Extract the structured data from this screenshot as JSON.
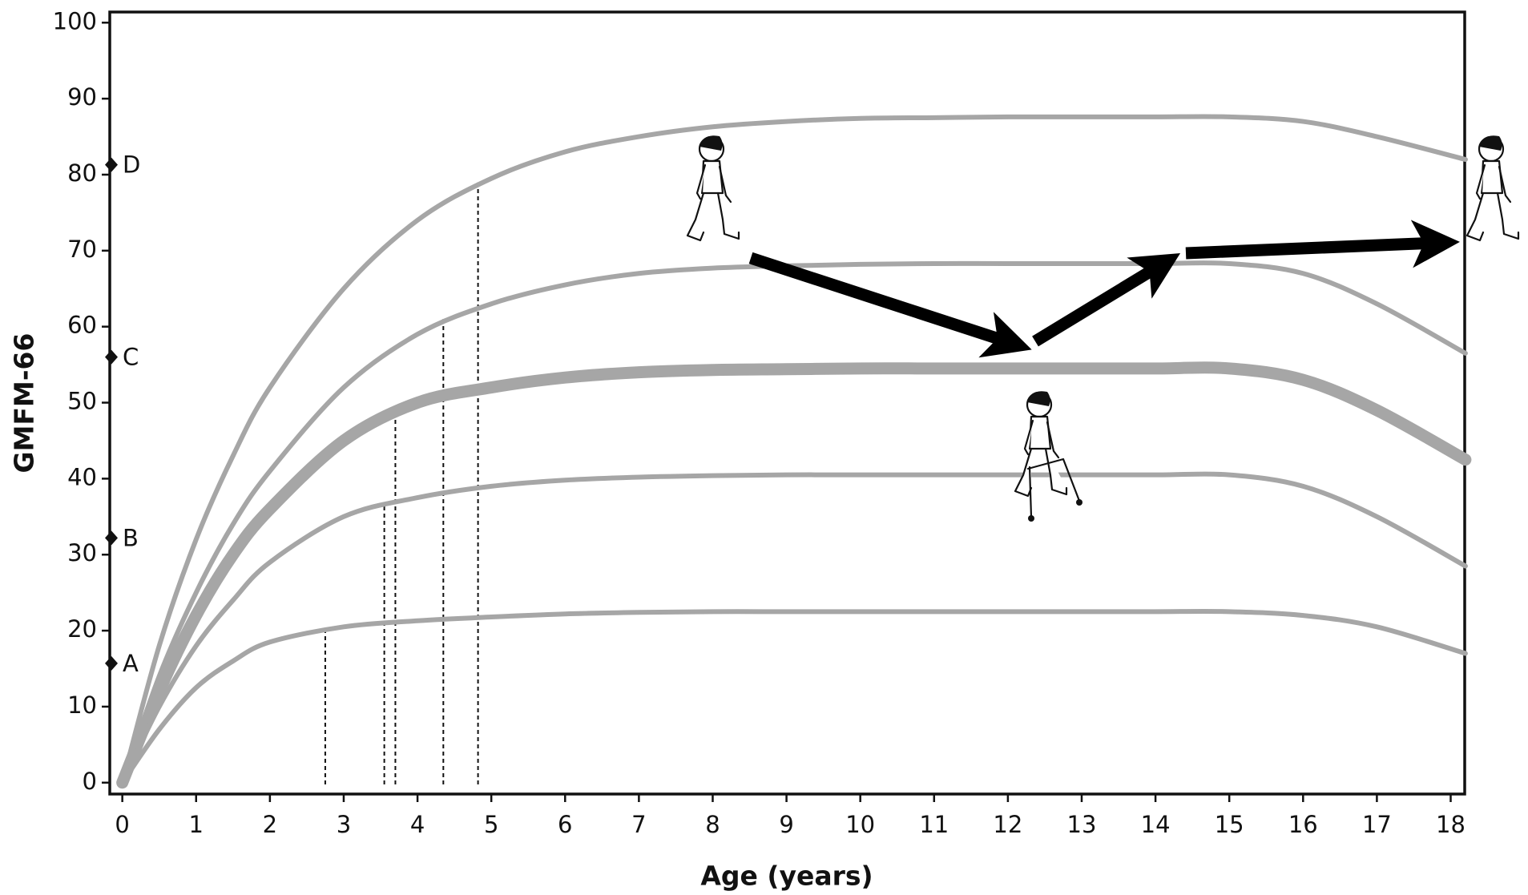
{
  "chart_data": {
    "type": "line",
    "x_label": "Age (years)",
    "y_label": "GMFM-66",
    "x": [
      0,
      0.5,
      1,
      1.5,
      2,
      3,
      4,
      5,
      6,
      7,
      8,
      9,
      10,
      11,
      12,
      13,
      14,
      15,
      16,
      17,
      18.2
    ],
    "series": [
      {
        "color": "#a6a6a6",
        "values": [
          0,
          18,
          32,
          43,
          52,
          65,
          74,
          79.5,
          83,
          85,
          86.3,
          87,
          87.4,
          87.5,
          87.6,
          87.6,
          87.6,
          87.6,
          87,
          85,
          82
        ]
      },
      {
        "color": "#a6a6a6",
        "values": [
          0,
          14,
          25,
          34,
          41,
          52,
          59,
          63,
          65.5,
          67,
          67.7,
          68,
          68.2,
          68.3,
          68.3,
          68.3,
          68.3,
          68.3,
          67,
          63,
          56.5
        ]
      },
      {
        "color": "#a6a6a6",
        "emphasis": true,
        "values": [
          0,
          12,
          22,
          30,
          36,
          45,
          50,
          52,
          53.3,
          54,
          54.3,
          54.4,
          54.5,
          54.5,
          54.5,
          54.5,
          54.5,
          54.5,
          53,
          49,
          42.5
        ]
      },
      {
        "color": "#a6a6a6",
        "values": [
          0,
          10,
          18,
          24,
          29,
          35,
          37.5,
          39,
          39.8,
          40.2,
          40.4,
          40.5,
          40.5,
          40.5,
          40.5,
          40.5,
          40.5,
          40.5,
          39,
          35,
          28.5
        ]
      },
      {
        "color": "#a6a6a6",
        "values": [
          0,
          7,
          12.5,
          16,
          18.5,
          20.5,
          21.3,
          21.8,
          22.2,
          22.4,
          22.5,
          22.5,
          22.5,
          22.5,
          22.5,
          22.5,
          22.5,
          22.5,
          22,
          20.5,
          17
        ]
      }
    ],
    "reference_lines": [
      {
        "x": 2.75,
        "y": 20
      },
      {
        "x": 3.55,
        "y": 36.5
      },
      {
        "x": 3.7,
        "y": 49
      },
      {
        "x": 4.35,
        "y": 61
      },
      {
        "x": 4.82,
        "y": 79
      }
    ],
    "markers": [
      {
        "label": "A",
        "value": 15.7
      },
      {
        "label": "B",
        "value": 32.2
      },
      {
        "label": "C",
        "value": 56
      },
      {
        "label": "D",
        "value": 81.3
      }
    ],
    "xlim": [
      -0.17,
      18.19
    ],
    "ylim": [
      -1.5,
      101.4
    ],
    "xticks": [
      0,
      1,
      2,
      3,
      4,
      5,
      6,
      7,
      8,
      9,
      10,
      11,
      12,
      13,
      14,
      15,
      16,
      17,
      18
    ],
    "yticks": [
      0,
      10,
      20,
      30,
      40,
      50,
      60,
      70,
      80,
      90,
      100
    ]
  }
}
